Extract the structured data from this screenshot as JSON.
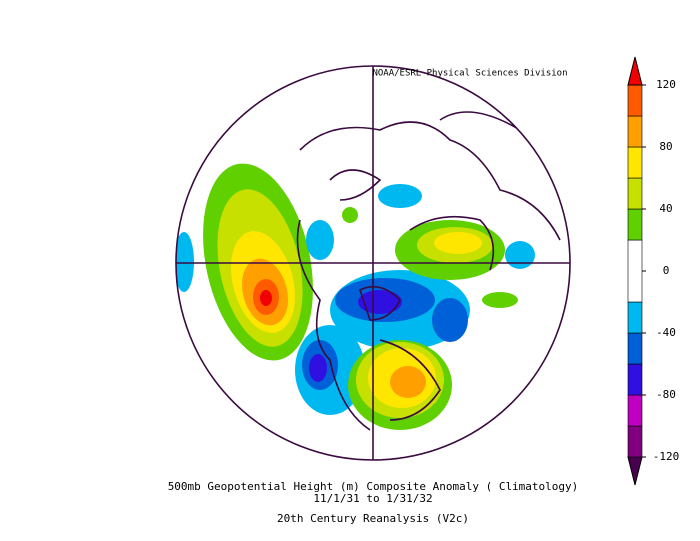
{
  "header": {
    "credit": "NOAA/ESRL Physical Sciences Division"
  },
  "caption": {
    "title": "500mb Geopotential Height (m) Composite Anomaly ( Climatology)",
    "dates": "11/1/31   to 1/31/32",
    "source": "20th Century Reanalysis (V2c)"
  },
  "colorbar": {
    "levels": [
      -120,
      -100,
      -80,
      -60,
      -40,
      -20,
      20,
      40,
      60,
      80,
      100,
      120
    ],
    "colors": [
      "#4a0050",
      "#800080",
      "#c000c0",
      "#3010e0",
      "#0060d8",
      "#00b8f0",
      "#ffffff",
      "#60d000",
      "#c8e000",
      "#ffe600",
      "#ffa000",
      "#ff5a00",
      "#f00000"
    ],
    "ticks": [
      120,
      80,
      40,
      0,
      -40,
      -80,
      -120
    ]
  }
}
